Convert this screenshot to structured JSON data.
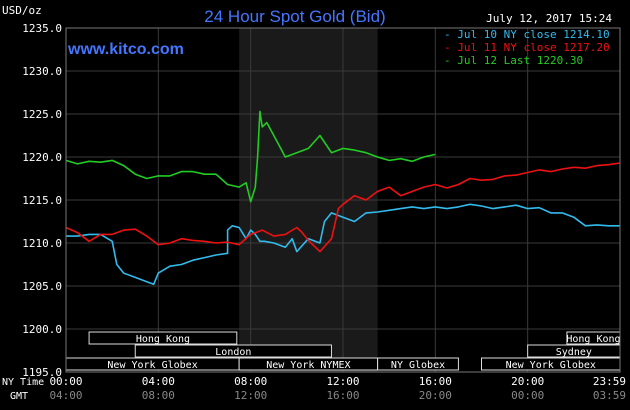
{
  "chart_data": {
    "type": "line",
    "title": "24 Hour Spot Gold (Bid)",
    "watermark": "www.kitco.com",
    "timestamp": "July 12, 2017 15:24",
    "ylabel": "USD/oz",
    "ylim": [
      1195.0,
      1235.0
    ],
    "yticks": [
      "1195.0",
      "1200.0",
      "1205.0",
      "1210.0",
      "1215.0",
      "1220.0",
      "1225.0",
      "1230.0",
      "1235.0"
    ],
    "xlim": [
      0,
      24
    ],
    "x_row_ny_label": "NY Time",
    "x_row_gmt_label": "GMT",
    "x_ticks_ny": [
      "00:00",
      "04:00",
      "08:00",
      "12:00",
      "16:00",
      "20:00",
      "23:59"
    ],
    "x_ticks_gmt": [
      "04:00",
      "08:00",
      "12:00",
      "16:00",
      "20:00",
      "00:00",
      "03:59"
    ],
    "x_tick_positions": [
      0,
      4,
      8,
      12,
      16,
      20,
      24
    ],
    "highlight_window": [
      7.5,
      13.5
    ],
    "grid": true,
    "legend_placement": "top-right",
    "colors": {
      "background": "#000000",
      "grid": "#3a3a3a",
      "jul10": "#33bbee",
      "jul11": "#ee1111",
      "jul12": "#22cc22",
      "title": "#4477ff",
      "watermark": "#4477ff",
      "session_box": "#ffffff"
    },
    "series": [
      {
        "name": "Jul 10 NY close 1214.10",
        "color": "#33bbee",
        "x": [
          0,
          0.5,
          1,
          1.5,
          2,
          2.2,
          2.5,
          3,
          3.5,
          3.8,
          4,
          4.5,
          5,
          5.5,
          6,
          6.5,
          7,
          7,
          7.2,
          7.5,
          7.8,
          8,
          8.2,
          8.4,
          8.6,
          9,
          9.5,
          9.8,
          10,
          10.5,
          11,
          11.2,
          11.5,
          12,
          12.5,
          13,
          13.5,
          14,
          14.5,
          15,
          15.5,
          16,
          16.5,
          17,
          17.5,
          18,
          18.5,
          19,
          19.5,
          20,
          20.5,
          21,
          21.5,
          22,
          22.5,
          23,
          23.5,
          24
        ],
        "y": [
          1210.8,
          1210.8,
          1211.0,
          1211.0,
          1210.2,
          1207.5,
          1206.5,
          1206.0,
          1205.5,
          1205.2,
          1206.5,
          1207.3,
          1207.5,
          1208.0,
          1208.3,
          1208.6,
          1208.8,
          1211.5,
          1212.0,
          1211.8,
          1210.5,
          1211.5,
          1211.0,
          1210.2,
          1210.2,
          1210.0,
          1209.5,
          1210.5,
          1209.0,
          1210.5,
          1210.0,
          1212.5,
          1213.5,
          1213.0,
          1212.5,
          1213.5,
          1213.6,
          1213.8,
          1214.0,
          1214.2,
          1214.0,
          1214.2,
          1214.0,
          1214.2,
          1214.5,
          1214.3,
          1214.0,
          1214.2,
          1214.4,
          1214.0,
          1214.1,
          1213.5,
          1213.5,
          1213.0,
          1212.0,
          1212.1,
          1212.0,
          1212.0
        ]
      },
      {
        "name": "Jul 11 NY close 1217.20",
        "color": "#ee1111",
        "x": [
          0,
          0.5,
          1,
          1.5,
          2,
          2.5,
          3,
          3.5,
          4,
          4.5,
          5,
          5.5,
          6,
          6.5,
          7,
          7.5,
          8,
          8.2,
          8.5,
          9,
          9.5,
          10,
          10.2,
          10.5,
          11,
          11.5,
          11.8,
          12,
          12.5,
          13,
          13.5,
          14,
          14.5,
          15,
          15.5,
          16,
          16.5,
          17,
          17.5,
          18,
          18.5,
          19,
          19.5,
          20,
          20.5,
          21,
          21.5,
          22,
          22.5,
          23,
          23.5,
          24
        ],
        "y": [
          1211.8,
          1211.2,
          1210.2,
          1211.0,
          1211.0,
          1211.5,
          1211.6,
          1210.8,
          1209.8,
          1210.0,
          1210.5,
          1210.3,
          1210.2,
          1210.0,
          1210.1,
          1209.8,
          1211.0,
          1211.2,
          1211.5,
          1210.8,
          1211.0,
          1211.8,
          1211.3,
          1210.3,
          1209.0,
          1210.5,
          1214.0,
          1214.5,
          1215.5,
          1215.0,
          1216.0,
          1216.5,
          1215.5,
          1216.0,
          1216.5,
          1216.8,
          1216.4,
          1216.8,
          1217.5,
          1217.3,
          1217.4,
          1217.8,
          1217.9,
          1218.2,
          1218.5,
          1218.3,
          1218.6,
          1218.8,
          1218.7,
          1219.0,
          1219.1,
          1219.3
        ]
      },
      {
        "name": "Jul 12 Last 1220.30",
        "color": "#22cc22",
        "x": [
          0,
          0.5,
          1,
          1.5,
          2,
          2.5,
          3,
          3.5,
          4,
          4.5,
          5,
          5.5,
          6,
          6.5,
          7,
          7.5,
          7.8,
          8,
          8.2,
          8.3,
          8.4,
          8.5,
          8.7,
          9,
          9.3,
          9.5,
          10,
          10.5,
          11,
          11.5,
          12,
          12.5,
          13,
          13.5,
          14,
          14.5,
          15,
          15.5,
          16
        ],
        "y": [
          1219.6,
          1219.2,
          1219.5,
          1219.4,
          1219.6,
          1219.0,
          1218.0,
          1217.5,
          1217.8,
          1217.8,
          1218.3,
          1218.3,
          1218.0,
          1218.0,
          1216.8,
          1216.5,
          1217.0,
          1214.8,
          1216.5,
          1220.0,
          1225.3,
          1223.5,
          1224.0,
          1222.5,
          1221.0,
          1220.0,
          1220.5,
          1221.0,
          1222.5,
          1220.5,
          1221.0,
          1220.8,
          1220.5,
          1220.0,
          1219.6,
          1219.8,
          1219.5,
          1220.0,
          1220.3
        ]
      }
    ],
    "sessions": [
      {
        "label": "Hong Kong",
        "start": 1.0,
        "end": 7.4,
        "row": 0
      },
      {
        "label": "Hong Kong",
        "start": 21.7,
        "end": 24.0,
        "row": 0
      },
      {
        "label": "London",
        "start": 3.0,
        "end": 11.5,
        "row": 1
      },
      {
        "label": "Sydney",
        "start": 20.0,
        "end": 24.0,
        "row": 1
      },
      {
        "label": "New York Globex",
        "start": 0.0,
        "end": 7.5,
        "row": 2
      },
      {
        "label": "New York NYMEX",
        "start": 7.5,
        "end": 13.5,
        "row": 2
      },
      {
        "label": "NY Globex",
        "start": 13.5,
        "end": 17.0,
        "row": 2
      },
      {
        "label": "New York Globex",
        "start": 18.0,
        "end": 24.0,
        "row": 2
      }
    ]
  }
}
